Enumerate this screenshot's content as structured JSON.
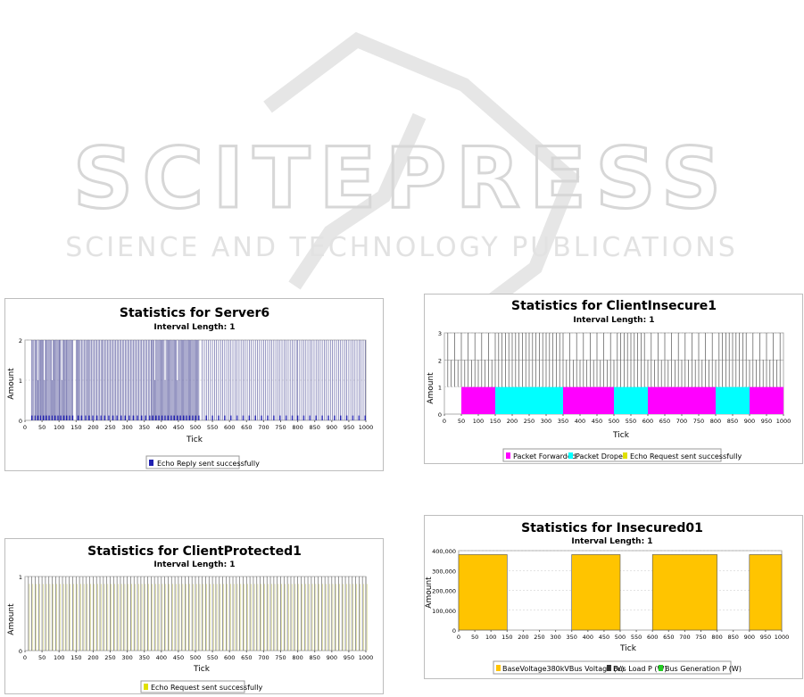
{
  "watermark": {
    "line1": "SCITEPRESS",
    "line2": "SCIENCE AND TECHNOLOGY PUBLICATIONS"
  },
  "colors": {
    "blue": "#2020b0",
    "magenta": "#ff00ff",
    "cyan": "#00ffff",
    "yellow": "#e0e000",
    "orange": "#ffc400",
    "line_dark": "#444444",
    "grid": "#c8c8c8"
  },
  "chart_data": [
    {
      "type": "bar",
      "title": "Statistics for Server6",
      "subtitle": "Interval Length: 1",
      "xlabel": "Tick",
      "ylabel": "Amount",
      "xlim": [
        0,
        1000
      ],
      "ylim": [
        0,
        2
      ],
      "xticks": [
        0,
        50,
        100,
        150,
        200,
        250,
        300,
        350,
        400,
        450,
        500,
        550,
        600,
        650,
        700,
        750,
        800,
        850,
        900,
        950,
        1000
      ],
      "yticks": [
        0,
        1,
        2
      ],
      "series": [
        {
          "name": "Echo Reply sent successfully",
          "color": "#2020b0",
          "x": [
            20,
            23,
            26,
            30,
            32,
            35,
            38,
            41,
            44,
            46,
            48,
            51,
            54,
            57,
            60,
            62,
            65,
            68,
            71,
            74,
            77,
            80,
            82,
            85,
            88,
            91,
            94,
            97,
            100,
            102,
            105,
            108,
            111,
            114,
            117,
            120,
            122,
            125,
            128,
            131,
            134,
            137,
            140,
            150,
            153,
            156,
            159,
            162,
            166,
            170,
            174,
            178,
            181,
            185,
            188,
            191,
            195,
            199,
            203,
            207,
            211,
            215,
            219,
            223,
            227,
            230,
            234,
            238,
            242,
            246,
            250,
            254,
            258,
            262,
            266,
            270,
            274,
            278,
            282,
            286,
            290,
            294,
            298,
            302,
            306,
            310,
            314,
            318,
            322,
            326,
            330,
            334,
            338,
            342,
            346,
            350,
            354,
            358,
            362,
            366,
            370,
            372,
            375,
            378,
            381,
            384,
            387,
            390,
            393,
            396,
            399,
            402,
            405,
            408,
            411,
            414,
            417,
            420,
            423,
            426,
            429,
            432,
            435,
            438,
            441,
            444,
            447,
            450,
            453,
            456,
            459,
            462,
            465,
            468,
            471,
            474,
            477,
            480,
            483,
            486,
            489,
            492,
            495,
            498,
            501,
            504,
            507,
            510,
            520,
            526,
            532,
            538,
            544,
            550,
            556,
            562,
            568,
            574,
            580,
            586,
            592,
            598,
            604,
            610,
            616,
            622,
            628,
            634,
            640,
            646,
            652,
            658,
            664,
            670,
            676,
            682,
            688,
            694,
            700,
            706,
            712,
            718,
            724,
            730,
            736,
            742,
            748,
            754,
            760,
            766,
            772,
            778,
            784,
            790,
            796,
            800,
            806,
            812,
            818,
            824,
            830,
            836,
            842,
            848,
            854,
            860,
            866,
            872,
            878,
            884,
            890,
            896,
            902,
            908,
            914,
            920,
            926,
            932,
            938,
            944,
            950,
            956,
            962,
            968,
            974,
            980,
            986,
            992,
            998
          ],
          "y": [
            2,
            2,
            2,
            2,
            2,
            2,
            1,
            2,
            2,
            2,
            2,
            2,
            2,
            1,
            2,
            2,
            2,
            2,
            2,
            2,
            2,
            1,
            2,
            2,
            2,
            2,
            2,
            2,
            2,
            2,
            2,
            1,
            2,
            2,
            2,
            2,
            2,
            2,
            2,
            2,
            2,
            2,
            2,
            2,
            2,
            2,
            2,
            2,
            2,
            2,
            2,
            2,
            2,
            2,
            2,
            2,
            2,
            2,
            2,
            2,
            2,
            2,
            2,
            2,
            2,
            2,
            2,
            2,
            2,
            2,
            2,
            2,
            2,
            2,
            2,
            2,
            2,
            2,
            2,
            2,
            2,
            2,
            2,
            2,
            2,
            2,
            2,
            2,
            2,
            2,
            2,
            2,
            2,
            2,
            2,
            2,
            2,
            2,
            2,
            2,
            2,
            2,
            2,
            2,
            1,
            2,
            2,
            2,
            2,
            2,
            2,
            2,
            2,
            2,
            1,
            2,
            2,
            2,
            2,
            2,
            2,
            2,
            2,
            2,
            2,
            2,
            1,
            2,
            2,
            2,
            2,
            2,
            2,
            2,
            2,
            2,
            2,
            2,
            2,
            2,
            2,
            2,
            2,
            2,
            2,
            2,
            2,
            2,
            2,
            2,
            2,
            2,
            2,
            2,
            2,
            2,
            2,
            2,
            2,
            2,
            2,
            2,
            2,
            2,
            2,
            2,
            2,
            2,
            2,
            2,
            2,
            2,
            2,
            2,
            2,
            2,
            2,
            2,
            2,
            2,
            2,
            2,
            2,
            2,
            2,
            2,
            2,
            2,
            2,
            2,
            2,
            2,
            2,
            2,
            2,
            2,
            2,
            2,
            2,
            2,
            2,
            2,
            2,
            2,
            2,
            2,
            2,
            2,
            2,
            2,
            2,
            2,
            2,
            2,
            2,
            2,
            2,
            2,
            2,
            2,
            2,
            2,
            2,
            2,
            2,
            2,
            2,
            2,
            2
          ]
        }
      ]
    },
    {
      "type": "bar",
      "title": "Statistics for ClientInsecure1",
      "subtitle": "Interval Length: 1",
      "xlabel": "Tick",
      "ylabel": "Amount",
      "xlim": [
        0,
        1000
      ],
      "ylim": [
        0,
        3
      ],
      "xticks": [
        0,
        50,
        100,
        150,
        200,
        250,
        300,
        350,
        400,
        450,
        500,
        550,
        600,
        650,
        700,
        750,
        800,
        850,
        900,
        950,
        1000
      ],
      "yticks": [
        0,
        1,
        2,
        3
      ],
      "segments": [
        {
          "series": "Packet Forwarded",
          "from": 50,
          "to": 150
        },
        {
          "series": "Packet Droped",
          "from": 150,
          "to": 350
        },
        {
          "series": "Packet Forwarded",
          "from": 350,
          "to": 500
        },
        {
          "series": "Packet Droped",
          "from": 500,
          "to": 600
        },
        {
          "series": "Packet Forwarded",
          "from": 600,
          "to": 800
        },
        {
          "series": "Packet Droped",
          "from": 800,
          "to": 900
        },
        {
          "series": "Packet Forwarded",
          "from": 900,
          "to": 1000
        }
      ],
      "spikes_x_step": 10,
      "spikes_x_start": 10,
      "spikes_x_end": 990,
      "spikes_value": 3,
      "series": [
        {
          "name": "Packet Forwarded",
          "color": "#ff00ff"
        },
        {
          "name": "Packet Droped",
          "color": "#00ffff"
        },
        {
          "name": "Echo Request sent successfully",
          "color": "#e0e000"
        }
      ]
    },
    {
      "type": "bar",
      "title": "Statistics for ClientProtected1",
      "subtitle": "Interval Length: 1",
      "xlabel": "Tick",
      "ylabel": "Amount",
      "xlim": [
        0,
        1000
      ],
      "ylim": [
        0,
        1
      ],
      "xticks": [
        0,
        50,
        100,
        150,
        200,
        250,
        300,
        350,
        400,
        450,
        500,
        550,
        600,
        650,
        700,
        750,
        800,
        850,
        900,
        950,
        1000
      ],
      "yticks": [
        0,
        1
      ],
      "spikes_x_step": 10,
      "spikes_x_start": 10,
      "spikes_x_end": 1000,
      "spikes_value": 1,
      "series": [
        {
          "name": "Echo Request sent successfully",
          "color": "#e0e000"
        }
      ]
    },
    {
      "type": "bar",
      "title": "Statistics for Insecured01",
      "subtitle": "Interval Length: 1",
      "xlabel": "Tick",
      "ylabel": "Amount",
      "xlim": [
        0,
        1000
      ],
      "ylim": [
        0,
        400000
      ],
      "xticks": [
        0,
        50,
        100,
        150,
        200,
        250,
        300,
        350,
        400,
        450,
        500,
        550,
        600,
        650,
        700,
        750,
        800,
        850,
        900,
        950,
        1000
      ],
      "yticks": [
        0,
        100000,
        200000,
        300000,
        400000
      ],
      "ytick_labels": [
        "0",
        "100,000",
        "200,000",
        "300,000",
        "400,000"
      ],
      "blocks": [
        {
          "from": 0,
          "to": 150,
          "value": 380000
        },
        {
          "from": 350,
          "to": 500,
          "value": 380000
        },
        {
          "from": 600,
          "to": 800,
          "value": 380000
        },
        {
          "from": 900,
          "to": 1000,
          "value": 380000
        }
      ],
      "series": [
        {
          "name": "BaseVoltage380kVBus Voltage (V)",
          "color": "#ffc400"
        },
        {
          "name": "Bus Load P (W)",
          "color": "#333333"
        },
        {
          "name": "Bus Generation P (W)",
          "color": "#22cc22"
        }
      ]
    }
  ]
}
